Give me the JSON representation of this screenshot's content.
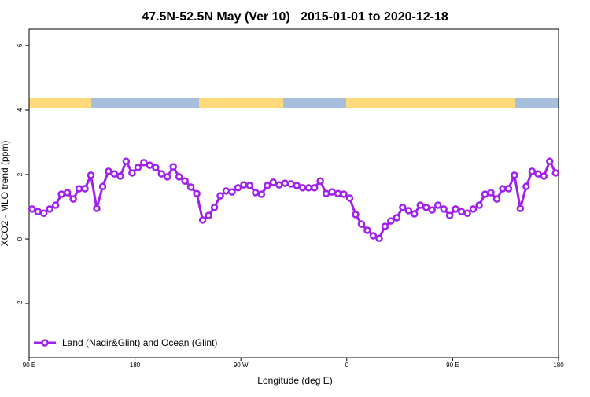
{
  "chart_data": {
    "type": "line",
    "title": "47.5N-52.5N May (Ver 10)   2015-01-01 to 2020-12-18",
    "x_label": "Longitude (deg E)",
    "y_label": "XCO2 - MLO trend (ppm)",
    "x": [
      92.5,
      97.5,
      102.5,
      107.5,
      112.5,
      117.5,
      122.5,
      127.5,
      132.5,
      137.5,
      142.5,
      147.5,
      152.5,
      157.5,
      162.5,
      167.5,
      172.5,
      177.5,
      182.5,
      187.5,
      192.5,
      197.5,
      202.5,
      207.5,
      212.5,
      217.5,
      222.5,
      227.5,
      232.5,
      237.5,
      242.5,
      247.5,
      252.5,
      257.5,
      262.5,
      267.5,
      272.5,
      277.5,
      282.5,
      287.5,
      292.5,
      297.5,
      302.5,
      307.5,
      312.5,
      317.5,
      322.5,
      327.5,
      332.5,
      337.5,
      342.5,
      347.5,
      352.5,
      357.5,
      362.5,
      367.5,
      372.5,
      377.5,
      382.5,
      387.5,
      392.5,
      397.5,
      402.5,
      407.5,
      412.5,
      417.5,
      422.5,
      427.5,
      432.5,
      437.5,
      442.5,
      447.5,
      452.5,
      457.5,
      462.5,
      467.5,
      472.5,
      477.5,
      482.5,
      487.5,
      492.5,
      497.5,
      502.5,
      507.5,
      512.5,
      517.5,
      522.5,
      527.5,
      532.5,
      537.5
    ],
    "series": [
      {
        "name": "Land (Nadir&Glint) and Ocean (Glint)",
        "color": "#a020f0",
        "values": [
          0.93,
          0.85,
          0.8,
          0.93,
          1.05,
          1.39,
          1.44,
          1.24,
          1.56,
          1.56,
          1.98,
          0.95,
          1.63,
          2.1,
          2.02,
          1.95,
          2.41,
          2.05,
          2.22,
          2.37,
          2.29,
          2.22,
          2.02,
          1.93,
          2.24,
          1.93,
          1.8,
          1.61,
          1.41,
          0.59,
          0.73,
          0.98,
          1.34,
          1.49,
          1.46,
          1.59,
          1.68,
          1.66,
          1.44,
          1.39,
          1.66,
          1.76,
          1.68,
          1.73,
          1.71,
          1.66,
          1.59,
          1.59,
          1.59,
          1.8,
          1.41,
          1.46,
          1.41,
          1.39,
          1.27,
          0.76,
          0.46,
          0.27,
          0.1,
          0.02,
          0.39,
          0.56,
          0.66,
          0.98,
          0.88,
          0.78,
          1.05,
          0.98,
          0.9,
          1.05,
          0.93,
          0.73,
          0.93,
          0.85,
          0.8,
          0.93,
          1.05,
          1.39,
          1.44,
          1.24,
          1.56,
          1.56,
          1.98,
          0.95,
          1.63,
          2.1,
          2.02,
          1.95,
          2.41,
          2.05
        ]
      }
    ],
    "xlim": [
      90,
      540
    ],
    "xticks": [
      {
        "value": 90,
        "label": "90 E"
      },
      180,
      {
        "value": 270,
        "label": "90 W"
      },
      {
        "value": 360,
        "label": "0"
      },
      {
        "value": 450,
        "label": "90 E"
      },
      {
        "value": 540,
        "label": "180"
      }
    ],
    "ylim": [
      -3.68,
      6.51
    ],
    "yticks": [
      -2,
      0,
      2,
      4,
      6
    ],
    "legend": "bottom-left"
  }
}
